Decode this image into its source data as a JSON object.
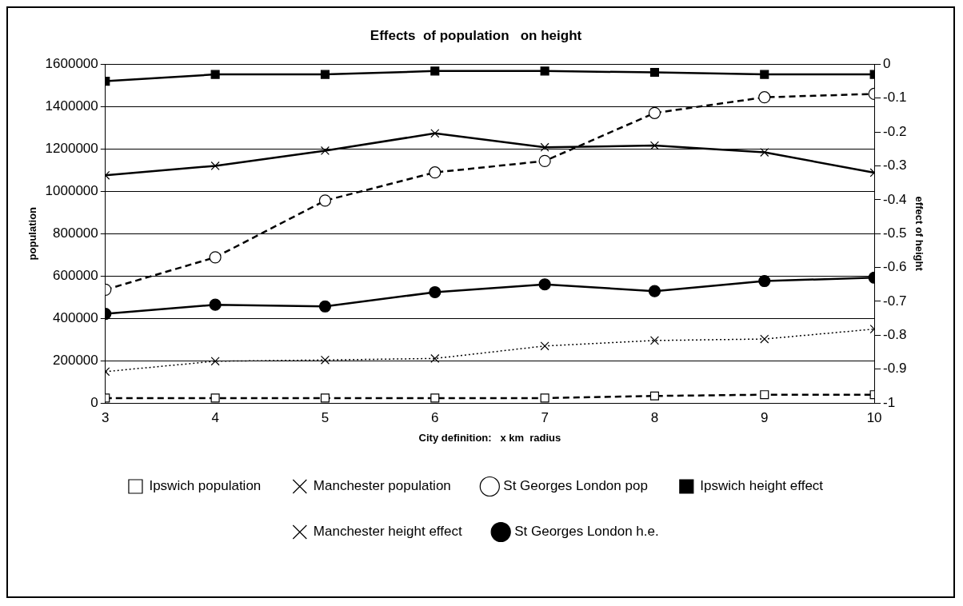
{
  "chart_data": {
    "type": "line",
    "title": "Effects  of population   on height",
    "xlabel": "City definition:   x km  radius",
    "ylabel": "population",
    "y2label": "effect of height",
    "x": [
      3,
      4,
      5,
      6,
      7,
      8,
      9,
      10
    ],
    "xlim": [
      3,
      10
    ],
    "xticks": [
      3,
      4,
      5,
      6,
      7,
      8,
      9,
      10
    ],
    "ylim": [
      0,
      1600000
    ],
    "yticks": [
      0,
      200000,
      400000,
      600000,
      800000,
      1000000,
      1200000,
      1400000,
      1600000
    ],
    "y2lim": [
      -1,
      0
    ],
    "y2ticks": [
      -1,
      -0.9,
      -0.8,
      -0.7,
      -0.6,
      -0.5,
      -0.4,
      -0.3,
      -0.2,
      -0.1,
      0
    ],
    "grid": "y",
    "legend": "bottom",
    "series": [
      {
        "name": "Ipswich population",
        "color": "#000000",
        "marker": "square",
        "line_style": "dashed",
        "values": [
          23000,
          23000,
          23000,
          23000,
          23000,
          33000,
          39000,
          39000
        ]
      },
      {
        "name": "Manchester population",
        "color": "#000000",
        "marker": "cross",
        "line_style": "dotted",
        "values": [
          148000,
          197000,
          203000,
          210000,
          269000,
          295000,
          302000,
          349000
        ]
      },
      {
        "name": "St Georges London pop",
        "color": "#000000",
        "marker": "circle",
        "line_style": "dashed",
        "values": [
          535000,
          688000,
          956000,
          1089000,
          1143000,
          1370000,
          1444000,
          1460000
        ]
      },
      {
        "name": "Ipswich height effect",
        "color": "#000000",
        "marker": "square",
        "line_style": "solid",
        "axis": "y2",
        "values": [
          -0.05,
          -0.03,
          -0.03,
          -0.02,
          -0.02,
          -0.024,
          -0.03,
          -0.03
        ]
      },
      {
        "name": "Manchester height effect",
        "color": "#000000",
        "marker": "cross",
        "line_style": "solid",
        "axis": "y2",
        "values": [
          -0.328,
          -0.3,
          -0.255,
          -0.204,
          -0.245,
          -0.24,
          -0.26,
          -0.32
        ]
      },
      {
        "name": "St Georges London h.e.",
        "color": "#000000",
        "marker": "circle",
        "line_style": "solid",
        "axis": "y2",
        "values": [
          -0.737,
          -0.71,
          -0.715,
          -0.673,
          -0.65,
          -0.67,
          -0.64,
          -0.63
        ]
      }
    ]
  }
}
